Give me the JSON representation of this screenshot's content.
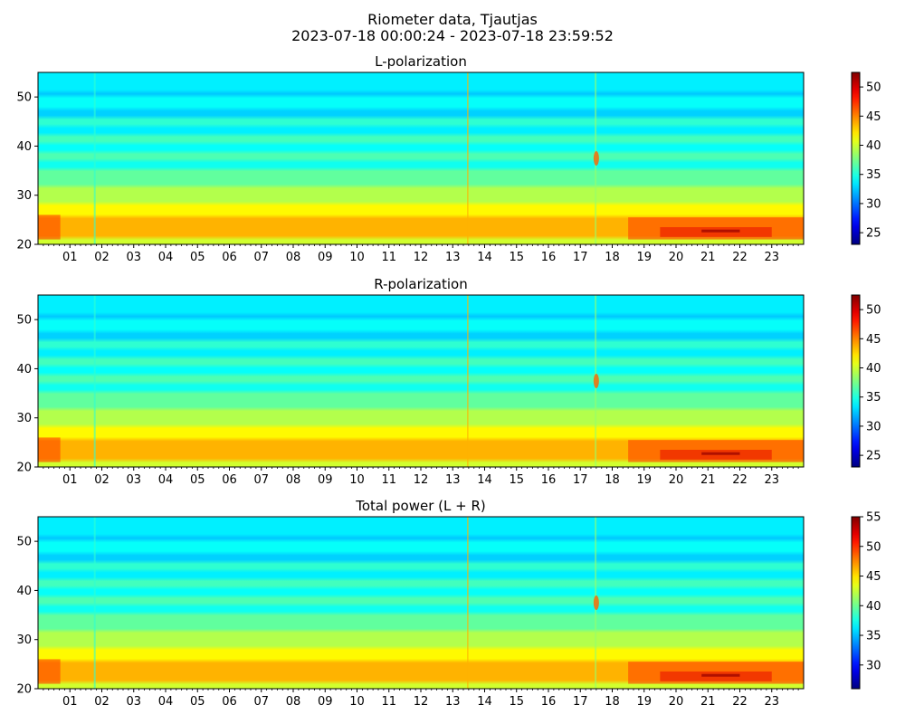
{
  "figure": {
    "title_line1": "Riometer data, Tjautjas",
    "title_line2": "2023-07-18 00:00:24 - 2023-07-18 23:59:52"
  },
  "colormap": "jet",
  "chart_data": [
    {
      "type": "heatmap",
      "title": "L-polarization",
      "x_unit": "hour of day",
      "xlim": [
        0,
        24
      ],
      "ylim": [
        20,
        55
      ],
      "x_tick_labels": [
        "01",
        "02",
        "03",
        "04",
        "05",
        "06",
        "07",
        "08",
        "09",
        "10",
        "11",
        "12",
        "13",
        "14",
        "15",
        "16",
        "17",
        "18",
        "19",
        "20",
        "21",
        "22",
        "23"
      ],
      "y_ticks": [
        20,
        30,
        40,
        50
      ],
      "colorbar": {
        "range": [
          23,
          52.5
        ],
        "ticks": [
          25,
          30,
          35,
          40,
          45,
          50
        ]
      },
      "grid": false
    },
    {
      "type": "heatmap",
      "title": "R-polarization",
      "x_unit": "hour of day",
      "xlim": [
        0,
        24
      ],
      "ylim": [
        20,
        55
      ],
      "x_tick_labels": [
        "01",
        "02",
        "03",
        "04",
        "05",
        "06",
        "07",
        "08",
        "09",
        "10",
        "11",
        "12",
        "13",
        "14",
        "15",
        "16",
        "17",
        "18",
        "19",
        "20",
        "21",
        "22",
        "23"
      ],
      "y_ticks": [
        20,
        30,
        40,
        50
      ],
      "colorbar": {
        "range": [
          23,
          52.5
        ],
        "ticks": [
          25,
          30,
          35,
          40,
          45,
          50
        ]
      },
      "grid": false
    },
    {
      "type": "heatmap",
      "title": "Total power (L + R)",
      "x_unit": "hour of day",
      "xlim": [
        0,
        24
      ],
      "ylim": [
        20,
        55
      ],
      "x_tick_labels": [
        "01",
        "02",
        "03",
        "04",
        "05",
        "06",
        "07",
        "08",
        "09",
        "10",
        "11",
        "12",
        "13",
        "14",
        "15",
        "16",
        "17",
        "18",
        "19",
        "20",
        "21",
        "22",
        "23"
      ],
      "y_ticks": [
        20,
        30,
        40,
        50
      ],
      "colorbar": {
        "range": [
          26,
          55
        ],
        "ticks": [
          30,
          35,
          40,
          45,
          50,
          55
        ]
      },
      "grid": false
    }
  ]
}
